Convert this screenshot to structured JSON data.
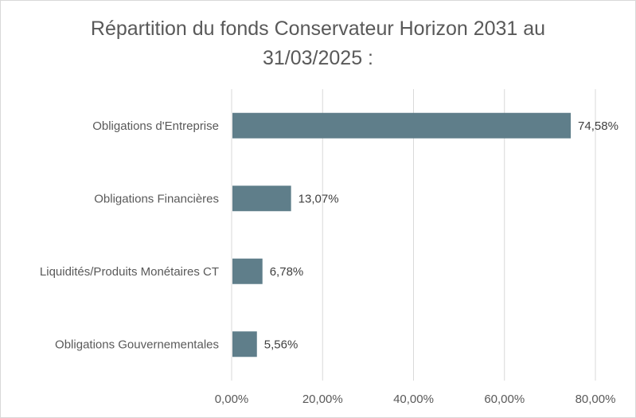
{
  "chart_data": {
    "type": "bar",
    "orientation": "horizontal",
    "title_lines": [
      "Répartition du fonds Conservateur Horizon 2031 au",
      "31/03/2025 :"
    ],
    "categories": [
      "Obligations d'Entreprise",
      "Obligations Financières",
      "Liquidités/Produits Monétaires CT",
      "Obligations Gouvernementales"
    ],
    "values": [
      74.58,
      13.07,
      6.78,
      5.56
    ],
    "value_labels": [
      "74,58%",
      "13,07%",
      "6,78%",
      "5,56%"
    ],
    "xlim": [
      0,
      80
    ],
    "xticks": [
      0,
      20,
      40,
      60,
      80
    ],
    "xtick_labels": [
      "0,00%",
      "20,00%",
      "40,00%",
      "60,00%",
      "80,00%"
    ],
    "grid": "vertical",
    "legend": "none",
    "bar_color": "#5f7e8a",
    "grid_color": "#d9d9d9"
  }
}
